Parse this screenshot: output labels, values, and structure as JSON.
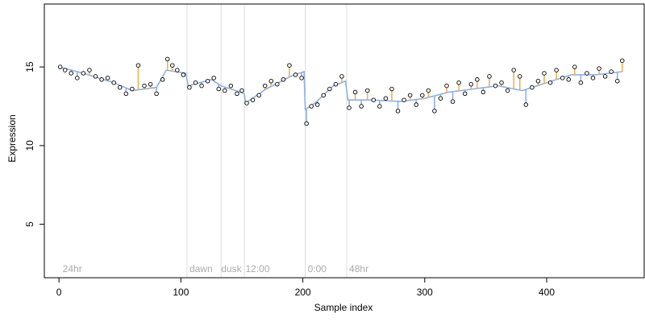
{
  "chart_data": {
    "type": "scatter",
    "title": "",
    "xlabel": "Sample index",
    "ylabel": "Expression",
    "xlim": [
      -12,
      480
    ],
    "ylim": [
      1.6,
      19.0
    ],
    "x_ticks": [
      0,
      100,
      200,
      300,
      400
    ],
    "y_ticks": [
      5,
      10,
      15
    ],
    "grid": false,
    "legend": "none",
    "colors": {
      "point_fill": "#ffffff",
      "point_stroke": "#000000",
      "segment_up": "#f0b050",
      "segment_down": "#8fb0e0",
      "phase_line": "#dddddd",
      "annotation": "#aaaaaa"
    },
    "phase_boundaries": [
      105,
      133,
      152,
      202,
      236
    ],
    "annotations": [
      {
        "x": 3,
        "label": "24hr"
      },
      {
        "x": 107,
        "label": "dawn"
      },
      {
        "x": 133,
        "label": "dusk"
      },
      {
        "x": 153,
        "label": "12:00"
      },
      {
        "x": 204,
        "label": "0:00"
      },
      {
        "x": 238,
        "label": "48hr"
      }
    ],
    "series": [
      {
        "fitted": [
          [
            0,
            15.0
          ],
          [
            20,
            14.6
          ],
          [
            45,
            14.0
          ],
          [
            60,
            13.5
          ],
          [
            80,
            13.7
          ],
          [
            88,
            14.8
          ],
          [
            104,
            14.6
          ],
          [
            106,
            13.8
          ],
          [
            125,
            14.2
          ],
          [
            133,
            13.8
          ],
          [
            145,
            13.5
          ],
          [
            152,
            13.3
          ],
          [
            153,
            12.7
          ],
          [
            170,
            13.6
          ],
          [
            190,
            14.4
          ],
          [
            201,
            14.7
          ],
          [
            202,
            12.3
          ],
          [
            210,
            12.7
          ],
          [
            225,
            13.8
          ],
          [
            235,
            14.1
          ],
          [
            237,
            12.9
          ],
          [
            255,
            12.9
          ],
          [
            280,
            12.8
          ],
          [
            300,
            13.0
          ],
          [
            320,
            13.4
          ],
          [
            340,
            13.6
          ],
          [
            360,
            13.8
          ],
          [
            380,
            13.5
          ],
          [
            400,
            14.0
          ],
          [
            420,
            14.5
          ],
          [
            440,
            14.5
          ],
          [
            462,
            14.7
          ]
        ],
        "values": [
          [
            1,
            15.0
          ],
          [
            5,
            14.8
          ],
          [
            10,
            14.6
          ],
          [
            15,
            14.3
          ],
          [
            20,
            14.6
          ],
          [
            25,
            14.8
          ],
          [
            30,
            14.4
          ],
          [
            35,
            14.2
          ],
          [
            40,
            14.3
          ],
          [
            45,
            14.0
          ],
          [
            50,
            13.7
          ],
          [
            55,
            13.3
          ],
          [
            60,
            13.6
          ],
          [
            65,
            15.1
          ],
          [
            70,
            13.8
          ],
          [
            75,
            13.9
          ],
          [
            80,
            13.3
          ],
          [
            85,
            14.2
          ],
          [
            89,
            15.5
          ],
          [
            93,
            15.1
          ],
          [
            97,
            14.8
          ],
          [
            102,
            14.5
          ],
          [
            107,
            13.7
          ],
          [
            112,
            14.0
          ],
          [
            117,
            13.8
          ],
          [
            122,
            14.1
          ],
          [
            127,
            14.3
          ],
          [
            131,
            13.6
          ],
          [
            136,
            13.5
          ],
          [
            141,
            13.8
          ],
          [
            146,
            13.3
          ],
          [
            150,
            13.5
          ],
          [
            154,
            12.7
          ],
          [
            159,
            12.9
          ],
          [
            164,
            13.2
          ],
          [
            169,
            13.8
          ],
          [
            174,
            14.1
          ],
          [
            179,
            13.9
          ],
          [
            184,
            14.2
          ],
          [
            189,
            15.1
          ],
          [
            194,
            14.5
          ],
          [
            199,
            14.3
          ],
          [
            203,
            11.4
          ],
          [
            207,
            12.5
          ],
          [
            212,
            12.6
          ],
          [
            217,
            13.2
          ],
          [
            222,
            13.6
          ],
          [
            227,
            13.9
          ],
          [
            232,
            14.4
          ],
          [
            238,
            12.4
          ],
          [
            243,
            13.4
          ],
          [
            248,
            12.5
          ],
          [
            253,
            13.5
          ],
          [
            258,
            12.9
          ],
          [
            263,
            12.5
          ],
          [
            268,
            13.0
          ],
          [
            273,
            13.6
          ],
          [
            278,
            12.2
          ],
          [
            283,
            12.9
          ],
          [
            288,
            13.2
          ],
          [
            293,
            12.6
          ],
          [
            298,
            13.2
          ],
          [
            303,
            13.5
          ],
          [
            308,
            12.2
          ],
          [
            313,
            13.0
          ],
          [
            318,
            13.8
          ],
          [
            323,
            12.8
          ],
          [
            328,
            14.0
          ],
          [
            333,
            13.3
          ],
          [
            338,
            13.9
          ],
          [
            343,
            14.2
          ],
          [
            348,
            13.4
          ],
          [
            353,
            14.4
          ],
          [
            358,
            13.8
          ],
          [
            363,
            14.0
          ],
          [
            368,
            13.5
          ],
          [
            373,
            14.8
          ],
          [
            378,
            14.4
          ],
          [
            383,
            12.6
          ],
          [
            388,
            13.7
          ],
          [
            393,
            14.1
          ],
          [
            398,
            14.6
          ],
          [
            403,
            14.0
          ],
          [
            408,
            14.8
          ],
          [
            413,
            14.3
          ],
          [
            418,
            14.2
          ],
          [
            423,
            15.0
          ],
          [
            428,
            14.0
          ],
          [
            433,
            14.6
          ],
          [
            438,
            14.3
          ],
          [
            443,
            14.9
          ],
          [
            448,
            14.4
          ],
          [
            453,
            14.7
          ],
          [
            458,
            14.1
          ],
          [
            462,
            15.4
          ]
        ]
      }
    ]
  }
}
